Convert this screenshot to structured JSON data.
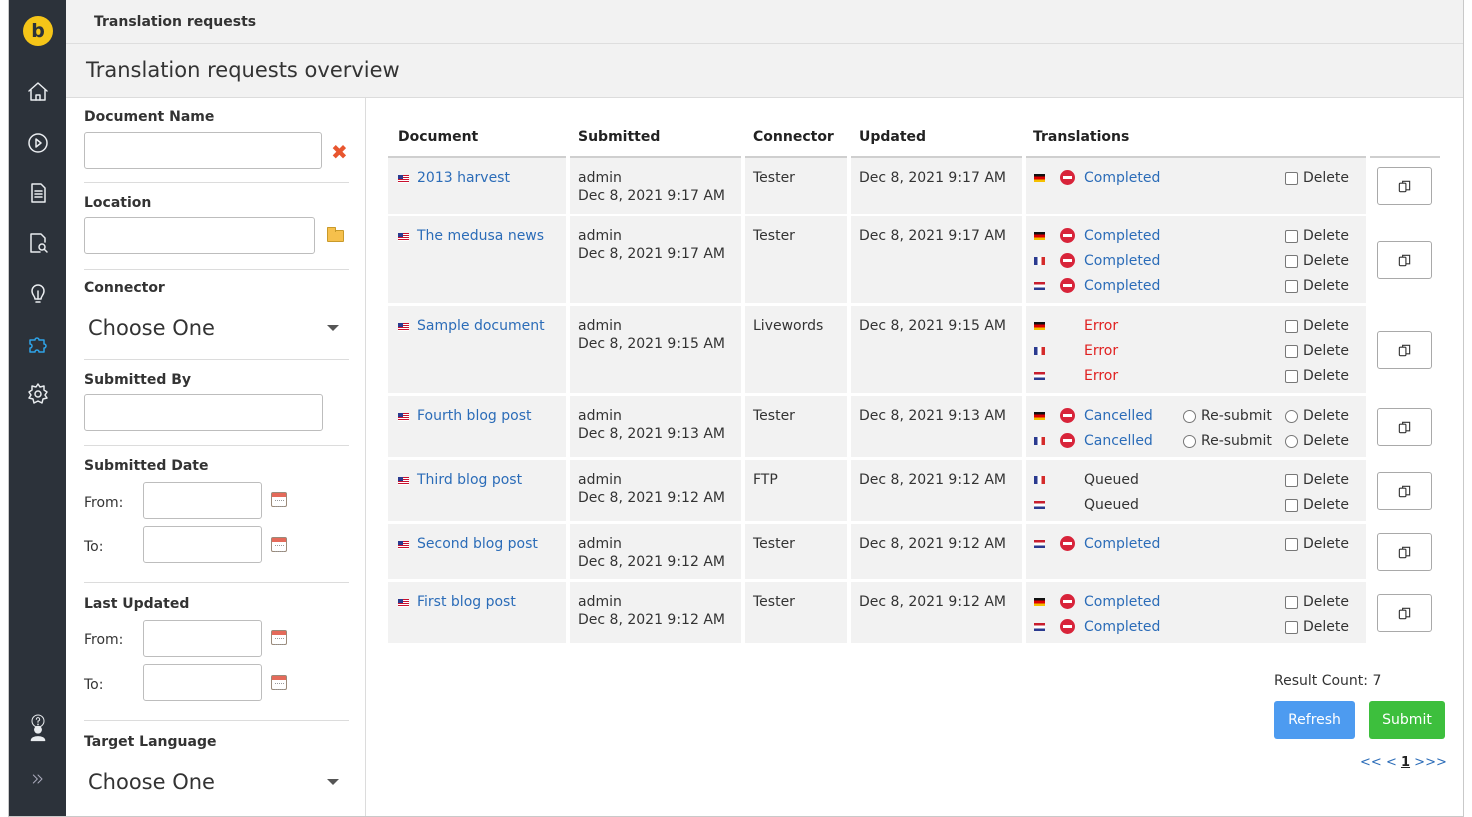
{
  "app": {
    "logo_letter": "b",
    "breadcrumb": "Translation requests",
    "page_title": "Translation requests overview"
  },
  "nav": {
    "items": [
      {
        "icon": "home-icon"
      },
      {
        "icon": "play-circle-icon"
      },
      {
        "icon": "document-icon"
      },
      {
        "icon": "document-search-icon"
      },
      {
        "icon": "lightbulb-icon"
      },
      {
        "icon": "puzzle-icon",
        "active": true
      },
      {
        "icon": "gear-icon"
      }
    ],
    "bottom": [
      {
        "icon": "help-icon"
      },
      {
        "icon": "user-icon"
      },
      {
        "icon": "expand-icon"
      }
    ],
    "active_color": "#2ea3e8"
  },
  "filters": {
    "document_name_label": "Document Name",
    "document_name_value": "",
    "location_label": "Location",
    "location_value": "",
    "connector_label": "Connector",
    "connector_value": "Choose One",
    "submitted_by_label": "Submitted By",
    "submitted_by_value": "",
    "submitted_date_label": "Submitted Date",
    "last_updated_label": "Last Updated",
    "from_label": "From:",
    "to_label": "To:",
    "target_language_label": "Target Language",
    "target_language_value": "Choose One"
  },
  "table": {
    "headers": {
      "document": "Document",
      "submitted": "Submitted",
      "connector": "Connector",
      "updated": "Updated",
      "translations": "Translations"
    },
    "delete_label": "Delete",
    "resubmit_label": "Re-submit",
    "rows": [
      {
        "document": "2013 harvest",
        "submitted_by": "admin",
        "submitted_at": "Dec 8, 2021 9:17 AM",
        "connector": "Tester",
        "updated": "Dec 8, 2021 9:17 AM",
        "translations": [
          {
            "flag": "de",
            "status": "Completed",
            "stop": true
          }
        ]
      },
      {
        "document": "The medusa news",
        "submitted_by": "admin",
        "submitted_at": "Dec 8, 2021 9:17 AM",
        "connector": "Tester",
        "updated": "Dec 8, 2021 9:17 AM",
        "translations": [
          {
            "flag": "de",
            "status": "Completed",
            "stop": true
          },
          {
            "flag": "fr",
            "status": "Completed",
            "stop": true
          },
          {
            "flag": "nl",
            "status": "Completed",
            "stop": true
          }
        ]
      },
      {
        "document": "Sample document",
        "submitted_by": "admin",
        "submitted_at": "Dec 8, 2021 9:15 AM",
        "connector": "Livewords",
        "updated": "Dec 8, 2021 9:15 AM",
        "translations": [
          {
            "flag": "de",
            "status": "Error",
            "stop": false
          },
          {
            "flag": "fr",
            "status": "Error",
            "stop": false
          },
          {
            "flag": "nl",
            "status": "Error",
            "stop": false
          }
        ]
      },
      {
        "document": "Fourth blog post",
        "submitted_by": "admin",
        "submitted_at": "Dec 8, 2021 9:13 AM",
        "connector": "Tester",
        "updated": "Dec 8, 2021 9:13 AM",
        "translations": [
          {
            "flag": "de",
            "status": "Cancelled",
            "stop": true,
            "resubmit": true
          },
          {
            "flag": "fr",
            "status": "Cancelled",
            "stop": true,
            "resubmit": true
          }
        ]
      },
      {
        "document": "Third blog post",
        "submitted_by": "admin",
        "submitted_at": "Dec 8, 2021 9:12 AM",
        "connector": "FTP",
        "updated": "Dec 8, 2021 9:12 AM",
        "translations": [
          {
            "flag": "fr",
            "status": "Queued",
            "stop": false
          },
          {
            "flag": "nl",
            "status": "Queued",
            "stop": false
          }
        ]
      },
      {
        "document": "Second blog post",
        "submitted_by": "admin",
        "submitted_at": "Dec 8, 2021 9:12 AM",
        "connector": "Tester",
        "updated": "Dec 8, 2021 9:12 AM",
        "translations": [
          {
            "flag": "nl",
            "status": "Completed",
            "stop": true
          }
        ]
      },
      {
        "document": "First blog post",
        "submitted_by": "admin",
        "submitted_at": "Dec 8, 2021 9:12 AM",
        "connector": "Tester",
        "updated": "Dec 8, 2021 9:12 AM",
        "translations": [
          {
            "flag": "de",
            "status": "Completed",
            "stop": true
          },
          {
            "flag": "nl",
            "status": "Completed",
            "stop": true
          }
        ]
      }
    ]
  },
  "footer": {
    "result_count": "Result Count: 7",
    "refresh_label": "Refresh",
    "submit_label": "Submit",
    "pager_first": "<<",
    "pager_prev": "<",
    "pager_current": "1",
    "pager_next": ">",
    "pager_last": ">>"
  },
  "colors": {
    "link": "#2b6cb8",
    "error": "#e02020",
    "refresh": "#4d9bf0",
    "submit": "#3dbf3d",
    "logo": "#f5c518"
  }
}
